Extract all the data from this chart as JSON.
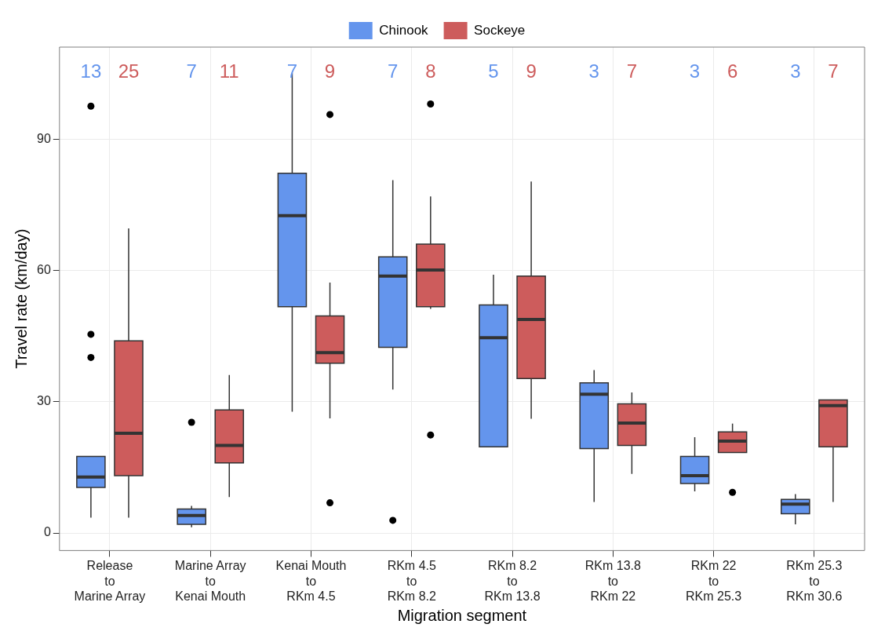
{
  "chart_data": {
    "type": "box",
    "xlabel": "Migration segment",
    "ylabel": "Travel rate (km/day)",
    "categories": [
      "Release\nto\nMarine Array",
      "Marine Array\nto\nKenai Mouth",
      "Kenai Mouth\nto\nRKm 4.5",
      "RKm 4.5\nto\nRKm 8.2",
      "RKm 8.2\nto\nRKm 13.8",
      "RKm 13.8\nto\nRKm 22",
      "RKm 22\nto\nRKm 25.3",
      "RKm 25.3\nto\nRKm 30.6"
    ],
    "ylim": [
      -4,
      111
    ],
    "yticks": [
      0,
      30,
      60,
      90
    ],
    "grid": true,
    "legend": "top",
    "series": [
      {
        "name": "Chinook",
        "color": "#6495ed",
        "value_labels": [
          "13",
          "7",
          "7",
          "7",
          "5",
          "3",
          "3",
          "3"
        ],
        "boxes": [
          {
            "low": 3.5,
            "q1": 10.4,
            "median": 12.8,
            "q3": 17.5,
            "high": 17.5,
            "outliers": [
              97.5,
              45.4,
              40.1
            ]
          },
          {
            "low": 1.3,
            "q1": 2.0,
            "median": 4.0,
            "q3": 5.5,
            "high": 6.2,
            "outliers": [
              25.3
            ]
          },
          {
            "low": 27.7,
            "q1": 51.7,
            "median": 72.5,
            "q3": 82.2,
            "high": 105.1
          },
          {
            "low": 32.8,
            "q1": 42.4,
            "median": 58.7,
            "q3": 63.1,
            "high": 80.6,
            "outliers": [
              2.9
            ]
          },
          {
            "low": 19.7,
            "q1": 19.7,
            "median": 44.6,
            "q3": 52.1,
            "high": 59.0
          },
          {
            "low": 7.1,
            "q1": 19.3,
            "median": 31.7,
            "q3": 34.3,
            "high": 37.2
          },
          {
            "low": 9.5,
            "q1": 11.3,
            "median": 13.1,
            "q3": 17.5,
            "high": 21.9
          },
          {
            "low": 2.0,
            "q1": 4.4,
            "median": 6.6,
            "q3": 7.7,
            "high": 8.9
          }
        ]
      },
      {
        "name": "Sockeye",
        "color": "#cd5c5c",
        "value_labels": [
          "25",
          "11",
          "9",
          "8",
          "9",
          "7",
          "6",
          "7"
        ],
        "boxes": [
          {
            "low": 3.5,
            "q1": 13.1,
            "median": 22.8,
            "q3": 43.9,
            "high": 69.6
          },
          {
            "low": 8.2,
            "q1": 16.0,
            "median": 20.0,
            "q3": 28.1,
            "high": 36.1
          },
          {
            "low": 26.2,
            "q1": 38.8,
            "median": 41.2,
            "q3": 49.6,
            "high": 57.2,
            "outliers": [
              95.6,
              6.9
            ]
          },
          {
            "low": 51.2,
            "q1": 51.7,
            "median": 60.1,
            "q3": 66.0,
            "high": 76.9,
            "outliers": [
              98.0,
              22.4
            ]
          },
          {
            "low": 26.1,
            "q1": 35.3,
            "median": 48.8,
            "q3": 58.7,
            "high": 80.3
          },
          {
            "low": 13.5,
            "q1": 20.0,
            "median": 25.1,
            "q3": 29.5,
            "high": 32.1
          },
          {
            "low": 18.4,
            "q1": 18.4,
            "median": 21.0,
            "q3": 23.1,
            "high": 25.0,
            "outliers": [
              9.3
            ]
          },
          {
            "low": 7.1,
            "q1": 19.7,
            "median": 29.1,
            "q3": 30.4,
            "high": 30.4
          }
        ]
      }
    ]
  }
}
